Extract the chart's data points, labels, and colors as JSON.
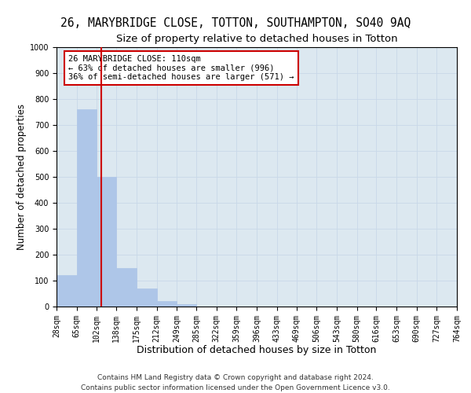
{
  "title": "26, MARYBRIDGE CLOSE, TOTTON, SOUTHAMPTON, SO40 9AQ",
  "subtitle": "Size of property relative to detached houses in Totton",
  "xlabel": "Distribution of detached houses by size in Totton",
  "ylabel": "Number of detached properties",
  "bar_edges": [
    28,
    65,
    102,
    138,
    175,
    212,
    249,
    285,
    322,
    359,
    396,
    433,
    469,
    506,
    543,
    580,
    616,
    653,
    690,
    727,
    764
  ],
  "bar_heights": [
    120,
    760,
    500,
    150,
    70,
    20,
    10,
    0,
    0,
    0,
    0,
    0,
    0,
    0,
    0,
    0,
    0,
    0,
    0,
    0
  ],
  "bar_color": "#aec6e8",
  "bar_edgecolor": "#aec6e8",
  "vline_x": 110,
  "vline_color": "#cc0000",
  "annotation_line1": "26 MARYBRIDGE CLOSE: 110sqm",
  "annotation_line2": "← 63% of detached houses are smaller (996)",
  "annotation_line3": "36% of semi-detached houses are larger (571) →",
  "annotation_boxcolor": "white",
  "annotation_edgecolor": "#cc0000",
  "grid_color": "#c8d8e8",
  "background_color": "#dce8f0",
  "ylim": [
    0,
    1000
  ],
  "yticks": [
    0,
    100,
    200,
    300,
    400,
    500,
    600,
    700,
    800,
    900,
    1000
  ],
  "footer_text": "Contains HM Land Registry data © Crown copyright and database right 2024.\nContains public sector information licensed under the Open Government Licence v3.0.",
  "title_fontsize": 10.5,
  "subtitle_fontsize": 9.5,
  "xlabel_fontsize": 9,
  "ylabel_fontsize": 8.5,
  "tick_fontsize": 7,
  "annotation_fontsize": 7.5,
  "footer_fontsize": 6.5
}
